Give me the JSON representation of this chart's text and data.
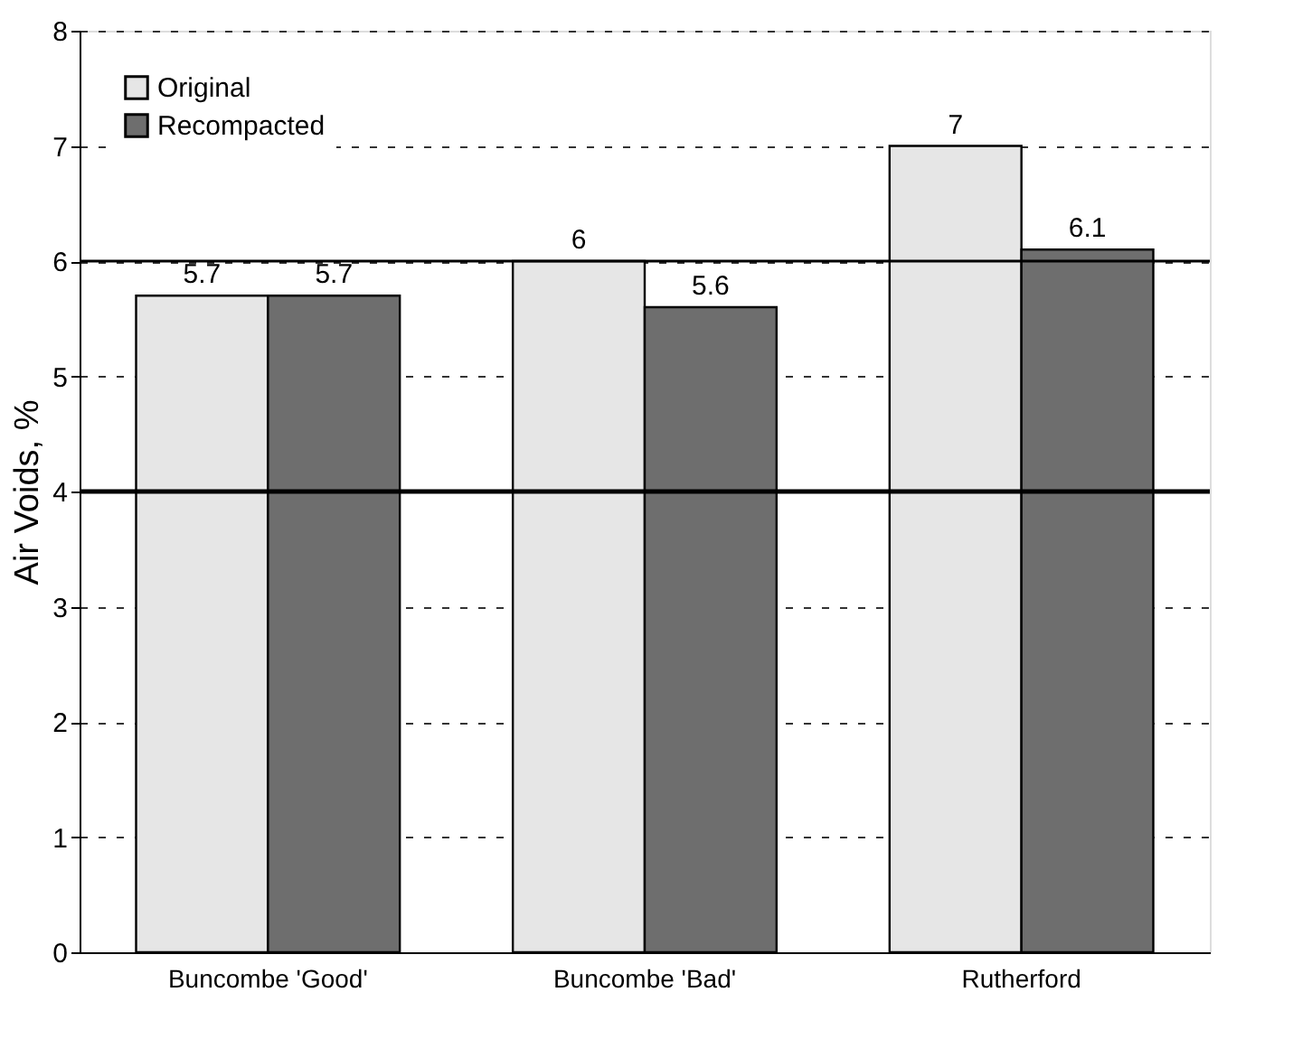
{
  "chart_data": {
    "type": "bar",
    "ylabel": "Air Voids, %",
    "categories": [
      "Buncombe 'Good'",
      "Buncombe 'Bad'",
      "Rutherford"
    ],
    "series": [
      {
        "name": "Original",
        "color": "#e6e6e6",
        "values": [
          5.7,
          6,
          7
        ]
      },
      {
        "name": "Recompacted",
        "color": "#6e6e6e",
        "values": [
          5.7,
          5.6,
          6.1
        ]
      }
    ],
    "ylim": [
      0,
      8
    ],
    "yticks": [
      0,
      1,
      2,
      3,
      4,
      5,
      6,
      7,
      8
    ],
    "grid": "y",
    "legend": "top left",
    "data_labels": true,
    "ref_lines": [
      {
        "axis": "y",
        "value": 4,
        "label": null
      },
      {
        "axis": "y",
        "value": 6,
        "label": null
      }
    ]
  }
}
